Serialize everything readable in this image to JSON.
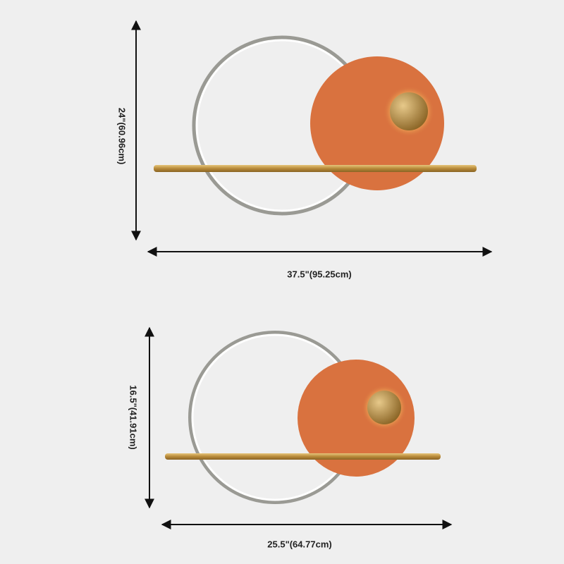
{
  "dimensions": [
    {
      "height": "24\"(60.96cm)",
      "width": "37.5\"(95.25cm)"
    },
    {
      "height": "16.5\"(41.91cm)",
      "width": "25.5\"(64.77cm)"
    }
  ]
}
